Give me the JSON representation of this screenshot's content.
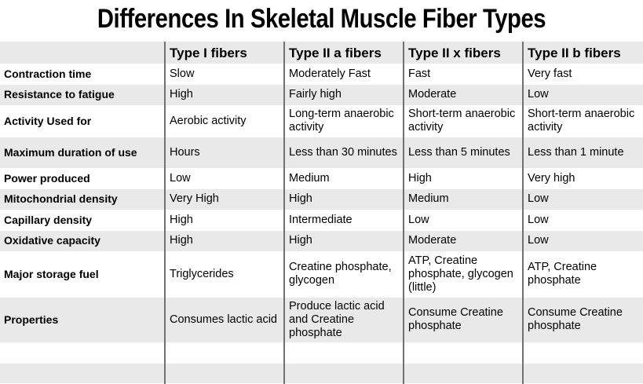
{
  "title": "Differences In Skeletal Muscle Fiber Types",
  "headers": [
    "",
    "Type I fibers",
    "Type II a fibers",
    "Type II x fibers",
    "Type II b fibers"
  ],
  "rows": [
    {
      "label": "Contraction time",
      "cells": [
        "Slow",
        "Moderately Fast",
        "Fast",
        "Very fast"
      ]
    },
    {
      "label": "Resistance to fatigue",
      "cells": [
        "High",
        "Fairly high",
        "Moderate",
        "Low"
      ]
    },
    {
      "label": "Activity Used for",
      "cells": [
        "Aerobic activity",
        "Long-term anaerobic activity",
        "Short-term anaerobic activity",
        "Short-term anaerobic activity"
      ]
    },
    {
      "label": "Maximum duration of use",
      "cells": [
        "Hours",
        "Less than 30 minutes",
        "Less than 5 minutes",
        "Less than 1 minute"
      ]
    },
    {
      "label": "Power produced",
      "cells": [
        "Low",
        "Medium",
        "High",
        "Very high"
      ]
    },
    {
      "label": "Mitochondrial density",
      "cells": [
        "Very High",
        "High",
        "Medium",
        "Low"
      ]
    },
    {
      "label": "Capillary density",
      "cells": [
        "High",
        "Intermediate",
        "Low",
        "Low"
      ]
    },
    {
      "label": "Oxidative capacity",
      "cells": [
        "High",
        "High",
        "Moderate",
        "Low"
      ]
    },
    {
      "label": "Major storage fuel",
      "cells": [
        "Triglycerides",
        "Creatine phosphate, glycogen",
        "ATP, Creatine phosphate, glycogen (little)",
        "ATP, Creatine phosphate"
      ]
    },
    {
      "label": "Properties",
      "cells": [
        "Consumes lactic acid",
        "Produce lactic acid and Creatine phosphate",
        "Consume Creatine phosphate",
        "Consume Creatine phosphate"
      ]
    },
    {
      "label": "",
      "cells": [
        "",
        "",
        "",
        ""
      ]
    },
    {
      "label": "",
      "cells": [
        "",
        "",
        "",
        ""
      ]
    }
  ],
  "colors": {
    "band": "#e9e9e9",
    "divider": "#707070"
  }
}
